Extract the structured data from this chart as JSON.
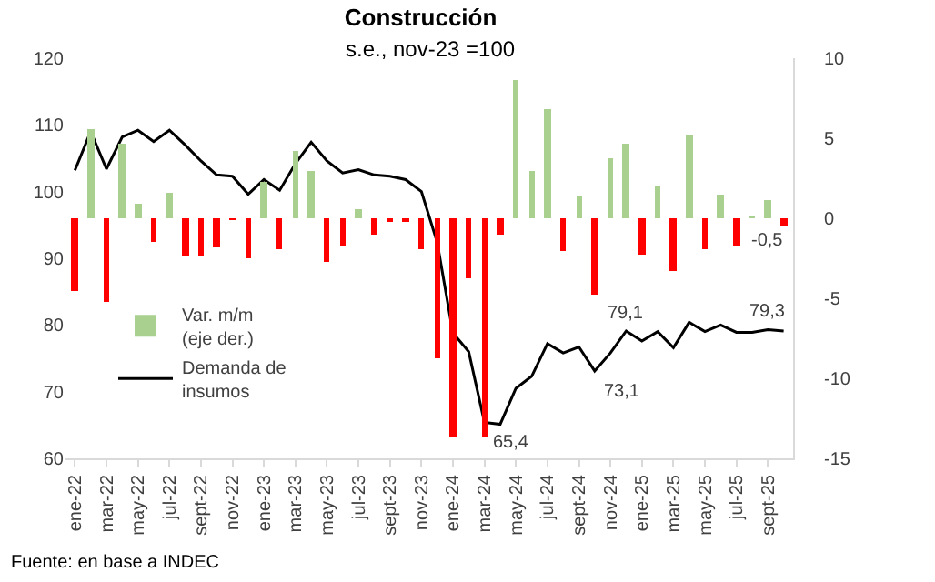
{
  "chart_data": {
    "type": "bar",
    "title": "Construcción",
    "subtitle": "s.e., nov-23 =100",
    "categories": [
      "ene-22",
      null,
      "mar-22",
      null,
      "may-22",
      null,
      "jul-22",
      null,
      "sept-22",
      null,
      "nov-22",
      null,
      "ene-23",
      null,
      "mar-23",
      null,
      "may-23",
      null,
      "jul-23",
      null,
      "sept-23",
      null,
      "nov-23",
      null,
      "ene-24",
      null,
      "mar-24",
      null,
      "may-24",
      null,
      "jul-24",
      null,
      "sept-24",
      null,
      "nov-24",
      null,
      "ene-25",
      null,
      "mar-25",
      null,
      "may-25",
      null,
      "jul-25",
      null,
      "sept-25",
      null
    ],
    "series": [
      {
        "name": "Var. m/m (eje der.)",
        "axis": "y2",
        "color": "#a9d08e",
        "colors": [
          "#ff0000",
          "#a9d08e",
          "#ff0000",
          "#a9d08e",
          "#a9d08e",
          "#ff0000",
          "#a9d08e",
          "#ff0000",
          "#ff0000",
          "#ff0000",
          "#ff0000",
          "#ff0000",
          "#a9d08e",
          "#ff0000",
          "#a9d08e",
          "#a9d08e",
          "#ff0000",
          "#ff0000",
          "#a9d08e",
          "#ff0000",
          "#ff0000",
          "#ff0000",
          "#ff0000",
          "#ff0000",
          "#ff0000",
          "#ff0000",
          "#ff0000",
          "#ff0000",
          "#a9d08e",
          "#a9d08e",
          "#a9d08e",
          "#ff0000",
          "#a9d08e",
          "#ff0000",
          "#a9d08e",
          "#a9d08e",
          "#ff0000",
          "#a9d08e",
          "#ff0000",
          "#a9d08e",
          "#ff0000",
          "#a9d08e",
          "#ff0000",
          "#a9d08e",
          "#a9d08e",
          "#ff0000"
        ],
        "values": [
          -4.5,
          5.6,
          -5.2,
          4.7,
          0.9,
          -1.5,
          1.6,
          -2.4,
          -2.4,
          -1.8,
          -0.1,
          -2.5,
          2.3,
          -1.9,
          4.2,
          3.0,
          -2.7,
          -1.7,
          0.6,
          -1.0,
          -0.2,
          -0.2,
          -1.9,
          -8.8,
          -13.6,
          -3.8,
          -13.6,
          -1.0,
          8.6,
          2.9,
          6.8,
          -2.0,
          1.4,
          -4.8,
          3.7,
          4.7,
          -2.3,
          2.0,
          -3.3,
          5.2,
          -1.9,
          1.5,
          -1.7,
          0.1,
          1.1,
          -0.5
        ],
        "value_labels": [
          null,
          null,
          null,
          null,
          null,
          null,
          null,
          null,
          null,
          null,
          null,
          null,
          null,
          null,
          null,
          null,
          null,
          null,
          null,
          null,
          null,
          null,
          null,
          null,
          null,
          null,
          null,
          null,
          null,
          null,
          null,
          null,
          null,
          null,
          null,
          null,
          null,
          null,
          null,
          null,
          null,
          null,
          null,
          null,
          null,
          "-0,5"
        ]
      },
      {
        "name": "Demanda de insumos",
        "type": "line",
        "axis": "y",
        "color": "#000000",
        "values": [
          103.2,
          109.0,
          103.4,
          108.2,
          109.2,
          107.5,
          109.2,
          107.0,
          104.6,
          102.5,
          102.3,
          99.6,
          101.8,
          100.2,
          104.2,
          107.4,
          104.6,
          102.8,
          103.3,
          102.5,
          102.3,
          101.8,
          100.0,
          92.4,
          78.8,
          76.0,
          65.4,
          65.1,
          70.5,
          72.3,
          77.2,
          75.8,
          76.7,
          73.1,
          75.8,
          79.1,
          77.6,
          79.0,
          76.6,
          80.4,
          79.0,
          80.0,
          78.9,
          78.9,
          79.3,
          79.1
        ],
        "value_labels": [
          null,
          null,
          null,
          null,
          null,
          null,
          null,
          null,
          null,
          null,
          null,
          null,
          null,
          null,
          null,
          null,
          null,
          null,
          null,
          null,
          null,
          null,
          null,
          null,
          null,
          null,
          "65,4",
          null,
          null,
          null,
          null,
          null,
          null,
          "73,1",
          null,
          "79,1",
          null,
          null,
          null,
          null,
          null,
          null,
          null,
          null,
          "79,3",
          null
        ]
      }
    ],
    "ylim": [
      60,
      120
    ],
    "yticks": [
      60,
      70,
      80,
      90,
      100,
      110,
      120
    ],
    "y2lim": [
      -15,
      10
    ],
    "y2ticks": [
      -15,
      -10,
      -5,
      0,
      5,
      10
    ],
    "legend": "left",
    "grid": false,
    "marker": "none",
    "annotations": [
      "Fuente: en base a INDEC"
    ]
  }
}
